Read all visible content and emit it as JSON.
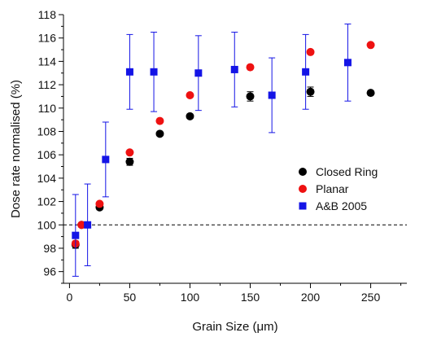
{
  "chart_data": {
    "type": "scatter",
    "xlabel": "Grain Size (μm)",
    "ylabel": "Dose rate normalised (%)",
    "xlim": [
      -5,
      280
    ],
    "ylim": [
      95,
      118
    ],
    "x_ticks": [
      0,
      50,
      100,
      150,
      200,
      250
    ],
    "y_ticks": [
      96,
      98,
      100,
      102,
      104,
      106,
      108,
      110,
      112,
      114,
      116,
      118
    ],
    "reference_line": {
      "y": 100,
      "style": "dashed"
    },
    "legend_position": "right-middle",
    "series": [
      {
        "name": "Closed Ring",
        "marker": "circle",
        "color": "#000000",
        "points": [
          {
            "x": 5,
            "y": 98.3,
            "err": 0.3
          },
          {
            "x": 10,
            "y": 100.0,
            "err": 0
          },
          {
            "x": 25,
            "y": 101.5,
            "err": 0.2
          },
          {
            "x": 50,
            "y": 105.4,
            "err": 0.3
          },
          {
            "x": 75,
            "y": 107.8,
            "err": 0
          },
          {
            "x": 100,
            "y": 109.3,
            "err": 0
          },
          {
            "x": 150,
            "y": 111.0,
            "err": 0.4
          },
          {
            "x": 200,
            "y": 111.4,
            "err": 0.4
          },
          {
            "x": 250,
            "y": 111.3,
            "err": 0
          }
        ]
      },
      {
        "name": "Planar",
        "marker": "circle",
        "color": "#ee1111",
        "points": [
          {
            "x": 5,
            "y": 98.4,
            "err": 0
          },
          {
            "x": 10,
            "y": 100.0,
            "err": 0
          },
          {
            "x": 25,
            "y": 101.8,
            "err": 0
          },
          {
            "x": 50,
            "y": 106.2,
            "err": 0
          },
          {
            "x": 75,
            "y": 108.9,
            "err": 0
          },
          {
            "x": 100,
            "y": 111.1,
            "err": 0
          },
          {
            "x": 150,
            "y": 113.5,
            "err": 0
          },
          {
            "x": 200,
            "y": 114.8,
            "err": 0
          },
          {
            "x": 250,
            "y": 115.4,
            "err": 0
          }
        ]
      },
      {
        "name": "A&B 2005",
        "marker": "square",
        "color": "#1414e6",
        "points": [
          {
            "x": 5,
            "y": 99.1,
            "err": 3.5
          },
          {
            "x": 15,
            "y": 100.0,
            "err": 3.5
          },
          {
            "x": 30,
            "y": 105.6,
            "err": 3.2
          },
          {
            "x": 50,
            "y": 113.1,
            "err": 3.2
          },
          {
            "x": 70,
            "y": 113.1,
            "err": 3.4
          },
          {
            "x": 107,
            "y": 113.0,
            "err": 3.2
          },
          {
            "x": 137,
            "y": 113.3,
            "err": 3.2
          },
          {
            "x": 168,
            "y": 111.1,
            "err": 3.2
          },
          {
            "x": 196,
            "y": 113.1,
            "err": 3.2
          },
          {
            "x": 231,
            "y": 113.9,
            "err": 3.3
          }
        ]
      }
    ]
  }
}
